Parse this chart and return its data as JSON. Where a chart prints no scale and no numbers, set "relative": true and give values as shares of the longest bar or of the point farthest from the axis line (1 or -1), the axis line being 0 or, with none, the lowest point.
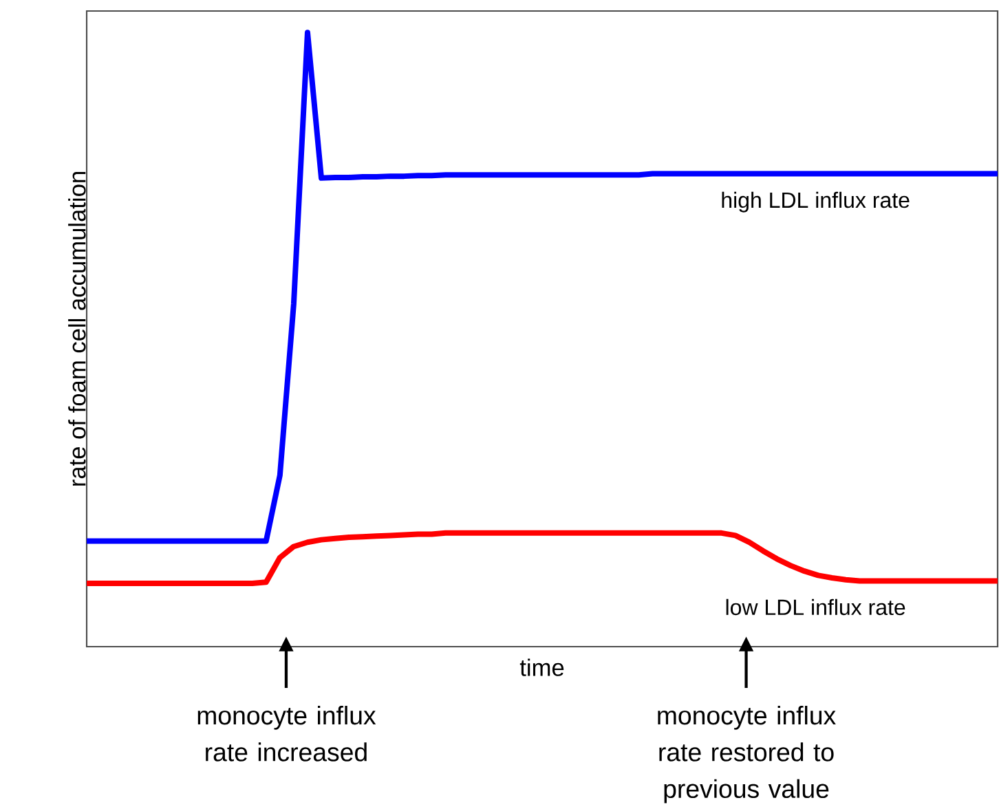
{
  "chart_data": {
    "type": "line",
    "relative": true,
    "xlabel": "time",
    "ylabel": "rate of foam cell accumulation",
    "categories": [
      null,
      null,
      null,
      null,
      null,
      null,
      null,
      null,
      null,
      null,
      null,
      null,
      null,
      null,
      null,
      null,
      null,
      null,
      null,
      null,
      null,
      null,
      null,
      null,
      null,
      null,
      null,
      null,
      null,
      null,
      null,
      null,
      null,
      null,
      null,
      null,
      null,
      null,
      null,
      null,
      null,
      null,
      null,
      null,
      null,
      null,
      null,
      null,
      null,
      null,
      null,
      null,
      null,
      null,
      null,
      null,
      null,
      null,
      null,
      null,
      null,
      null,
      null,
      null,
      null,
      null,
      null
    ],
    "series": [
      {
        "name": "high LDL influx rate",
        "color": "#0000ff",
        "values": [
          0.172,
          0.172,
          0.172,
          0.172,
          0.172,
          0.172,
          0.172,
          0.172,
          0.172,
          0.172,
          0.172,
          0.172,
          0.172,
          0.172,
          0.279,
          0.558,
          1.0,
          0.763,
          0.764,
          0.764,
          0.765,
          0.765,
          0.766,
          0.766,
          0.767,
          0.767,
          0.768,
          0.768,
          0.768,
          0.768,
          0.768,
          0.768,
          0.768,
          0.768,
          0.768,
          0.768,
          0.768,
          0.768,
          0.768,
          0.768,
          0.768,
          0.77,
          0.77,
          0.77,
          0.77,
          0.77,
          0.77,
          0.77,
          0.77,
          0.77,
          0.77,
          0.77,
          0.77,
          0.77,
          0.77,
          0.77,
          0.77,
          0.77,
          0.77,
          0.77,
          0.77,
          0.77,
          0.77,
          0.77,
          0.77,
          0.77,
          0.77
        ]
      },
      {
        "name": "low LDL influx rate",
        "color": "#ff0000",
        "values": [
          0.103,
          0.103,
          0.103,
          0.103,
          0.103,
          0.103,
          0.103,
          0.103,
          0.103,
          0.103,
          0.103,
          0.103,
          0.103,
          0.105,
          0.145,
          0.163,
          0.17,
          0.174,
          0.176,
          0.178,
          0.179,
          0.18,
          0.181,
          0.182,
          0.183,
          0.183,
          0.185,
          0.185,
          0.185,
          0.185,
          0.185,
          0.185,
          0.185,
          0.185,
          0.185,
          0.185,
          0.185,
          0.185,
          0.185,
          0.185,
          0.185,
          0.185,
          0.185,
          0.185,
          0.185,
          0.185,
          0.185,
          0.181,
          0.17,
          0.156,
          0.143,
          0.132,
          0.123,
          0.116,
          0.112,
          0.109,
          0.107,
          0.107,
          0.107,
          0.107,
          0.107,
          0.107,
          0.107,
          0.107,
          0.107,
          0.107,
          0.107
        ]
      }
    ],
    "annotations": [
      "monocyte influx rate increased",
      "monocyte influx rate restored to previous value"
    ]
  }
}
